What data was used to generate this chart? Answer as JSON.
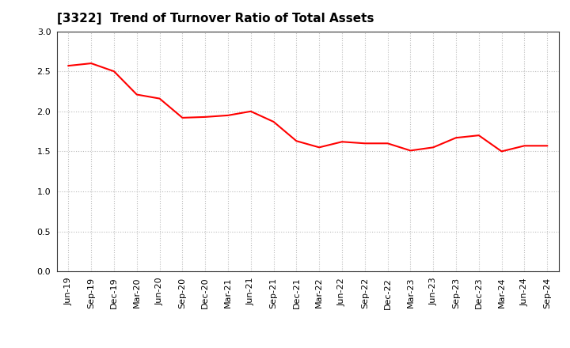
{
  "title": "[3322]  Trend of Turnover Ratio of Total Assets",
  "x_labels": [
    "Jun-19",
    "Sep-19",
    "Dec-19",
    "Mar-20",
    "Jun-20",
    "Sep-20",
    "Dec-20",
    "Mar-21",
    "Jun-21",
    "Sep-21",
    "Dec-21",
    "Mar-22",
    "Jun-22",
    "Sep-22",
    "Dec-22",
    "Mar-23",
    "Jun-23",
    "Sep-23",
    "Dec-23",
    "Mar-24",
    "Jun-24",
    "Sep-24"
  ],
  "values": [
    2.57,
    2.6,
    2.5,
    2.21,
    2.16,
    1.92,
    1.93,
    1.95,
    2.0,
    1.87,
    1.63,
    1.55,
    1.62,
    1.6,
    1.6,
    1.51,
    1.55,
    1.67,
    1.7,
    1.5,
    1.57,
    1.57
  ],
  "line_color": "#ff0000",
  "line_width": 1.5,
  "ylim": [
    0.0,
    3.0
  ],
  "yticks": [
    0.0,
    0.5,
    1.0,
    1.5,
    2.0,
    2.5,
    3.0
  ],
  "background_color": "#ffffff",
  "grid_color": "#bbbbbb",
  "title_fontsize": 11,
  "tick_fontsize": 8,
  "spine_color": "#333333"
}
